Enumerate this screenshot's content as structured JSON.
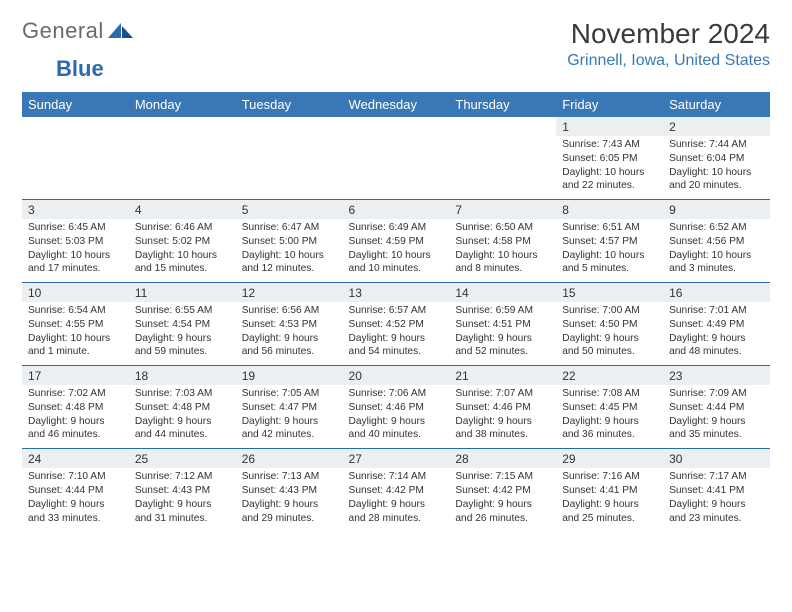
{
  "logo": {
    "general": "General",
    "blue": "Blue"
  },
  "header": {
    "month_title": "November 2024",
    "location": "Grinnell, Iowa, United States"
  },
  "colors": {
    "header_bg": "#3a78b5",
    "header_text": "#ffffff",
    "daynum_bg": "#eceff2",
    "rule": "#2a6bb0",
    "location_text": "#3a78b5"
  },
  "weekdays": [
    "Sunday",
    "Monday",
    "Tuesday",
    "Wednesday",
    "Thursday",
    "Friday",
    "Saturday"
  ],
  "weeks": [
    {
      "nums": [
        "",
        "",
        "",
        "",
        "",
        "1",
        "2"
      ],
      "cells": [
        null,
        null,
        null,
        null,
        null,
        {
          "sunrise": "Sunrise: 7:43 AM",
          "sunset": "Sunset: 6:05 PM",
          "day1": "Daylight: 10 hours",
          "day2": "and 22 minutes."
        },
        {
          "sunrise": "Sunrise: 7:44 AM",
          "sunset": "Sunset: 6:04 PM",
          "day1": "Daylight: 10 hours",
          "day2": "and 20 minutes."
        }
      ]
    },
    {
      "nums": [
        "3",
        "4",
        "5",
        "6",
        "7",
        "8",
        "9"
      ],
      "cells": [
        {
          "sunrise": "Sunrise: 6:45 AM",
          "sunset": "Sunset: 5:03 PM",
          "day1": "Daylight: 10 hours",
          "day2": "and 17 minutes."
        },
        {
          "sunrise": "Sunrise: 6:46 AM",
          "sunset": "Sunset: 5:02 PM",
          "day1": "Daylight: 10 hours",
          "day2": "and 15 minutes."
        },
        {
          "sunrise": "Sunrise: 6:47 AM",
          "sunset": "Sunset: 5:00 PM",
          "day1": "Daylight: 10 hours",
          "day2": "and 12 minutes."
        },
        {
          "sunrise": "Sunrise: 6:49 AM",
          "sunset": "Sunset: 4:59 PM",
          "day1": "Daylight: 10 hours",
          "day2": "and 10 minutes."
        },
        {
          "sunrise": "Sunrise: 6:50 AM",
          "sunset": "Sunset: 4:58 PM",
          "day1": "Daylight: 10 hours",
          "day2": "and 8 minutes."
        },
        {
          "sunrise": "Sunrise: 6:51 AM",
          "sunset": "Sunset: 4:57 PM",
          "day1": "Daylight: 10 hours",
          "day2": "and 5 minutes."
        },
        {
          "sunrise": "Sunrise: 6:52 AM",
          "sunset": "Sunset: 4:56 PM",
          "day1": "Daylight: 10 hours",
          "day2": "and 3 minutes."
        }
      ]
    },
    {
      "nums": [
        "10",
        "11",
        "12",
        "13",
        "14",
        "15",
        "16"
      ],
      "cells": [
        {
          "sunrise": "Sunrise: 6:54 AM",
          "sunset": "Sunset: 4:55 PM",
          "day1": "Daylight: 10 hours",
          "day2": "and 1 minute."
        },
        {
          "sunrise": "Sunrise: 6:55 AM",
          "sunset": "Sunset: 4:54 PM",
          "day1": "Daylight: 9 hours",
          "day2": "and 59 minutes."
        },
        {
          "sunrise": "Sunrise: 6:56 AM",
          "sunset": "Sunset: 4:53 PM",
          "day1": "Daylight: 9 hours",
          "day2": "and 56 minutes."
        },
        {
          "sunrise": "Sunrise: 6:57 AM",
          "sunset": "Sunset: 4:52 PM",
          "day1": "Daylight: 9 hours",
          "day2": "and 54 minutes."
        },
        {
          "sunrise": "Sunrise: 6:59 AM",
          "sunset": "Sunset: 4:51 PM",
          "day1": "Daylight: 9 hours",
          "day2": "and 52 minutes."
        },
        {
          "sunrise": "Sunrise: 7:00 AM",
          "sunset": "Sunset: 4:50 PM",
          "day1": "Daylight: 9 hours",
          "day2": "and 50 minutes."
        },
        {
          "sunrise": "Sunrise: 7:01 AM",
          "sunset": "Sunset: 4:49 PM",
          "day1": "Daylight: 9 hours",
          "day2": "and 48 minutes."
        }
      ]
    },
    {
      "nums": [
        "17",
        "18",
        "19",
        "20",
        "21",
        "22",
        "23"
      ],
      "cells": [
        {
          "sunrise": "Sunrise: 7:02 AM",
          "sunset": "Sunset: 4:48 PM",
          "day1": "Daylight: 9 hours",
          "day2": "and 46 minutes."
        },
        {
          "sunrise": "Sunrise: 7:03 AM",
          "sunset": "Sunset: 4:48 PM",
          "day1": "Daylight: 9 hours",
          "day2": "and 44 minutes."
        },
        {
          "sunrise": "Sunrise: 7:05 AM",
          "sunset": "Sunset: 4:47 PM",
          "day1": "Daylight: 9 hours",
          "day2": "and 42 minutes."
        },
        {
          "sunrise": "Sunrise: 7:06 AM",
          "sunset": "Sunset: 4:46 PM",
          "day1": "Daylight: 9 hours",
          "day2": "and 40 minutes."
        },
        {
          "sunrise": "Sunrise: 7:07 AM",
          "sunset": "Sunset: 4:46 PM",
          "day1": "Daylight: 9 hours",
          "day2": "and 38 minutes."
        },
        {
          "sunrise": "Sunrise: 7:08 AM",
          "sunset": "Sunset: 4:45 PM",
          "day1": "Daylight: 9 hours",
          "day2": "and 36 minutes."
        },
        {
          "sunrise": "Sunrise: 7:09 AM",
          "sunset": "Sunset: 4:44 PM",
          "day1": "Daylight: 9 hours",
          "day2": "and 35 minutes."
        }
      ]
    },
    {
      "nums": [
        "24",
        "25",
        "26",
        "27",
        "28",
        "29",
        "30"
      ],
      "cells": [
        {
          "sunrise": "Sunrise: 7:10 AM",
          "sunset": "Sunset: 4:44 PM",
          "day1": "Daylight: 9 hours",
          "day2": "and 33 minutes."
        },
        {
          "sunrise": "Sunrise: 7:12 AM",
          "sunset": "Sunset: 4:43 PM",
          "day1": "Daylight: 9 hours",
          "day2": "and 31 minutes."
        },
        {
          "sunrise": "Sunrise: 7:13 AM",
          "sunset": "Sunset: 4:43 PM",
          "day1": "Daylight: 9 hours",
          "day2": "and 29 minutes."
        },
        {
          "sunrise": "Sunrise: 7:14 AM",
          "sunset": "Sunset: 4:42 PM",
          "day1": "Daylight: 9 hours",
          "day2": "and 28 minutes."
        },
        {
          "sunrise": "Sunrise: 7:15 AM",
          "sunset": "Sunset: 4:42 PM",
          "day1": "Daylight: 9 hours",
          "day2": "and 26 minutes."
        },
        {
          "sunrise": "Sunrise: 7:16 AM",
          "sunset": "Sunset: 4:41 PM",
          "day1": "Daylight: 9 hours",
          "day2": "and 25 minutes."
        },
        {
          "sunrise": "Sunrise: 7:17 AM",
          "sunset": "Sunset: 4:41 PM",
          "day1": "Daylight: 9 hours",
          "day2": "and 23 minutes."
        }
      ]
    }
  ]
}
